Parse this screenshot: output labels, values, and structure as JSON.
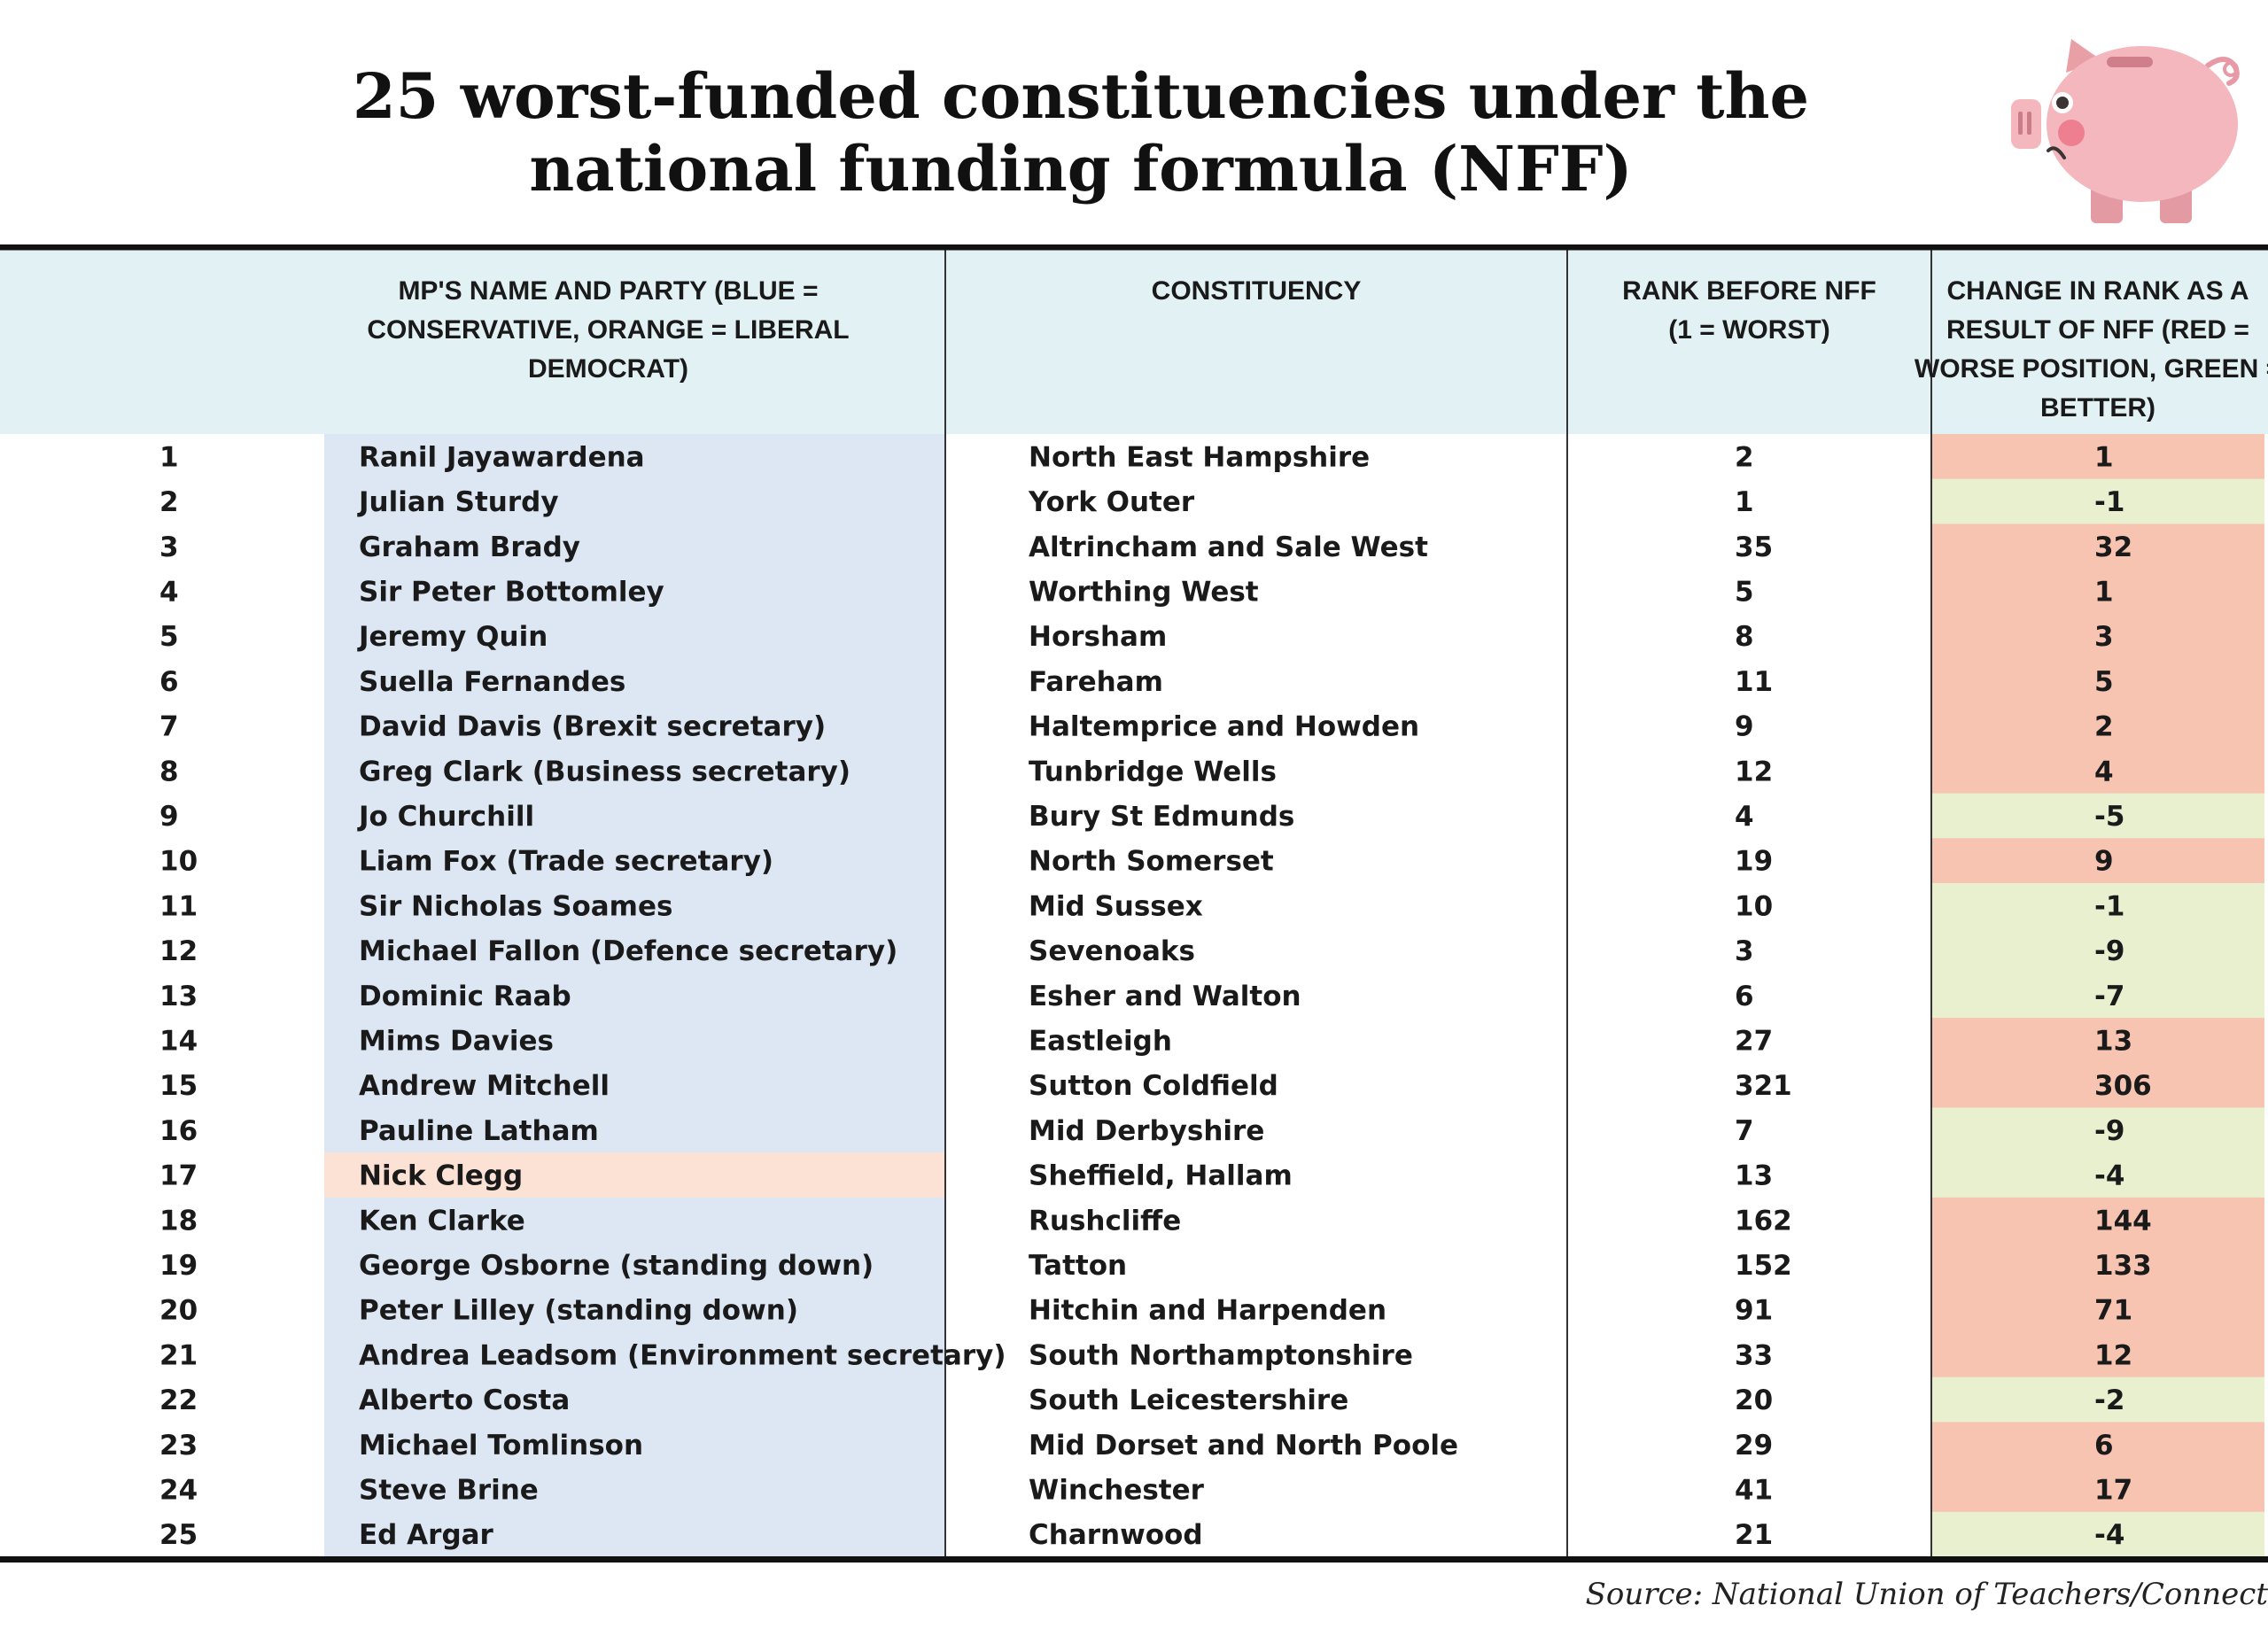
{
  "title": {
    "line1": "25 worst-funded constituencies under the",
    "line2": "national funding formula (NFF)"
  },
  "icon": "sad-piggy-bank-icon",
  "colors": {
    "header_bg": "#e2f1f4",
    "conservative": "#dde7f4",
    "lib_dem": "#fce2d4",
    "worse": "#f7c4b2",
    "better": "#e8f0cf"
  },
  "table": {
    "headers": {
      "rank": "",
      "mp_lines": [
        "MP'S NAME AND PARTY (BLUE =",
        "CONSERVATIVE, ORANGE = LIBERAL",
        "DEMOCRAT)"
      ],
      "constituency_lines": [
        "CONSTITUENCY"
      ],
      "before_lines": [
        "RANK BEFORE NFF",
        "(1 = WORST)"
      ],
      "change_lines": [
        "CHANGE IN RANK AS A",
        "RESULT OF NFF (RED =",
        "WORSE POSITION, GREEN =",
        "BETTER)"
      ]
    },
    "rows": [
      {
        "rank": "1",
        "mp": "Ranil Jayawardena",
        "party": "conservative",
        "constituency": "North East Hampshire",
        "before": "2",
        "change": "1"
      },
      {
        "rank": "2",
        "mp": "Julian Sturdy",
        "party": "conservative",
        "constituency": "York Outer",
        "before": "1",
        "change": "-1"
      },
      {
        "rank": "3",
        "mp": "Graham Brady",
        "party": "conservative",
        "constituency": "Altrincham and Sale West",
        "before": "35",
        "change": "32"
      },
      {
        "rank": "4",
        "mp": "Sir Peter Bottomley",
        "party": "conservative",
        "constituency": "Worthing West",
        "before": "5",
        "change": "1"
      },
      {
        "rank": "5",
        "mp": "Jeremy Quin",
        "party": "conservative",
        "constituency": "Horsham",
        "before": "8",
        "change": "3"
      },
      {
        "rank": "6",
        "mp": "Suella Fernandes",
        "party": "conservative",
        "constituency": "Fareham",
        "before": "11",
        "change": "5"
      },
      {
        "rank": "7",
        "mp": "David Davis (Brexit secretary)",
        "party": "conservative",
        "constituency": "Haltemprice and Howden",
        "before": "9",
        "change": "2"
      },
      {
        "rank": "8",
        "mp": "Greg Clark (Business secretary)",
        "party": "conservative",
        "constituency": "Tunbridge Wells",
        "before": "12",
        "change": "4"
      },
      {
        "rank": "9",
        "mp": "Jo Churchill",
        "party": "conservative",
        "constituency": "Bury St Edmunds",
        "before": "4",
        "change": "-5"
      },
      {
        "rank": "10",
        "mp": "Liam Fox (Trade secretary)",
        "party": "conservative",
        "constituency": "North Somerset",
        "before": "19",
        "change": "9"
      },
      {
        "rank": "11",
        "mp": "Sir Nicholas Soames",
        "party": "conservative",
        "constituency": "Mid Sussex",
        "before": "10",
        "change": "-1"
      },
      {
        "rank": "12",
        "mp": "Michael Fallon (Defence secretary)",
        "party": "conservative",
        "constituency": "Sevenoaks",
        "before": "3",
        "change": "-9"
      },
      {
        "rank": "13",
        "mp": "Dominic Raab",
        "party": "conservative",
        "constituency": "Esher and Walton",
        "before": "6",
        "change": "-7"
      },
      {
        "rank": "14",
        "mp": "Mims Davies",
        "party": "conservative",
        "constituency": "Eastleigh",
        "before": "27",
        "change": "13"
      },
      {
        "rank": "15",
        "mp": "Andrew Mitchell",
        "party": "conservative",
        "constituency": "Sutton Coldfield",
        "before": "321",
        "change": "306"
      },
      {
        "rank": "16",
        "mp": "Pauline Latham",
        "party": "conservative",
        "constituency": "Mid Derbyshire",
        "before": "7",
        "change": "-9"
      },
      {
        "rank": "17",
        "mp": "Nick Clegg",
        "party": "lib_dem",
        "constituency": "Sheffield, Hallam",
        "before": "13",
        "change": "-4"
      },
      {
        "rank": "18",
        "mp": "Ken Clarke",
        "party": "conservative",
        "constituency": "Rushcliffe",
        "before": "162",
        "change": "144"
      },
      {
        "rank": "19",
        "mp": "George Osborne (standing down)",
        "party": "conservative",
        "constituency": "Tatton",
        "before": "152",
        "change": "133"
      },
      {
        "rank": "20",
        "mp": "Peter Lilley (standing down)",
        "party": "conservative",
        "constituency": "Hitchin and Harpenden",
        "before": "91",
        "change": "71"
      },
      {
        "rank": "21",
        "mp": "Andrea Leadsom (Environment secretary)",
        "party": "conservative",
        "constituency": "South Northamptonshire",
        "before": "33",
        "change": "12"
      },
      {
        "rank": "22",
        "mp": "Alberto Costa",
        "party": "conservative",
        "constituency": "South Leicestershire",
        "before": "20",
        "change": "-2"
      },
      {
        "rank": "23",
        "mp": "Michael Tomlinson",
        "party": "conservative",
        "constituency": "Mid Dorset and North Poole",
        "before": "29",
        "change": "6"
      },
      {
        "rank": "24",
        "mp": "Steve Brine",
        "party": "conservative",
        "constituency": "Winchester",
        "before": "41",
        "change": "17"
      },
      {
        "rank": "25",
        "mp": "Ed Argar",
        "party": "conservative",
        "constituency": "Charnwood",
        "before": "21",
        "change": "-4"
      }
    ]
  },
  "chart_data": {
    "type": "table",
    "title": "25 worst-funded constituencies under the national funding formula (NFF)",
    "columns": [
      "",
      "MP'S NAME AND PARTY (BLUE = CONSERVATIVE, ORANGE = LIBERAL DEMOCRAT)",
      "CONSTITUENCY",
      "RANK BEFORE NFF (1 = WORST)",
      "CHANGE IN RANK AS A RESULT OF NFF (RED = WORSE POSITION, GREEN = BETTER)"
    ],
    "rank_before_nff": [
      2,
      1,
      35,
      5,
      8,
      11,
      9,
      12,
      4,
      19,
      10,
      3,
      6,
      27,
      321,
      7,
      13,
      162,
      152,
      91,
      33,
      20,
      29,
      41,
      21
    ],
    "change_in_rank": [
      1,
      -1,
      32,
      1,
      3,
      5,
      2,
      4,
      -5,
      9,
      -1,
      -9,
      -7,
      13,
      306,
      -9,
      -4,
      144,
      133,
      71,
      12,
      -2,
      6,
      17,
      -4
    ]
  },
  "source": "Source: National Union of Teachers/Connect"
}
